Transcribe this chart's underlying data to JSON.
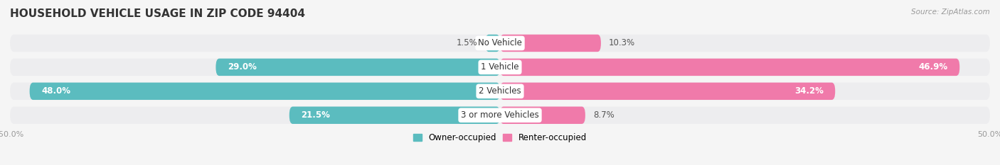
{
  "title": "HOUSEHOLD VEHICLE USAGE IN ZIP CODE 94404",
  "source": "Source: ZipAtlas.com",
  "categories": [
    "No Vehicle",
    "1 Vehicle",
    "2 Vehicles",
    "3 or more Vehicles"
  ],
  "owner_values": [
    1.5,
    29.0,
    48.0,
    21.5
  ],
  "renter_values": [
    10.3,
    46.9,
    34.2,
    8.7
  ],
  "owner_color": "#5bbcbf",
  "renter_color": "#f07aaa",
  "bg_color": "#f5f5f5",
  "bar_bg_color": "#e8e8ea",
  "row_bg_color": "#ededef",
  "xlim_left": -50,
  "xlim_right": 50,
  "legend_labels": [
    "Owner-occupied",
    "Renter-occupied"
  ],
  "title_fontsize": 11,
  "source_fontsize": 7.5,
  "label_fontsize": 8.5,
  "cat_fontsize": 8.5,
  "bar_height": 0.72,
  "n_rows": 4,
  "owner_label_threshold": 5,
  "renter_label_threshold": 12
}
